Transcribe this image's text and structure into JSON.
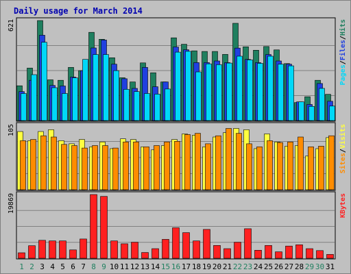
{
  "chart_data": {
    "type": "bar",
    "title": "Daily usage for March 2014",
    "categories": [
      "1",
      "2",
      "3",
      "4",
      "5",
      "6",
      "7",
      "8",
      "9",
      "10",
      "11",
      "12",
      "13",
      "14",
      "15",
      "16",
      "17",
      "18",
      "19",
      "20",
      "21",
      "22",
      "23",
      "24",
      "25",
      "26",
      "27",
      "28",
      "29",
      "30",
      "31"
    ],
    "weekend_days": [
      "1",
      "2",
      "8",
      "9",
      "15",
      "16",
      "22",
      "23",
      "29",
      "30"
    ],
    "panels": [
      {
        "id": "hits-files-pages",
        "ymax_label": "621",
        "ylim": [
          0,
          621
        ],
        "legend": [
          "Pages",
          "/",
          "Files",
          "/",
          "Hits"
        ],
        "series": [
          {
            "name": "Hits",
            "color": "#1f7f5f",
            "values": [
              216,
              326,
              621,
              253,
              250,
              330,
              310,
              548,
              505,
              390,
              266,
              240,
              358,
              297,
              240,
              514,
              474,
              433,
              429,
              429,
              411,
              604,
              458,
              437,
              460,
              439,
              354,
              112,
              148,
              250,
              163
            ]
          },
          {
            "name": "Files",
            "color": "#2040e0",
            "values": [
              180,
              250,
              530,
              218,
              215,
              270,
              310,
              451,
              500,
              350,
              260,
              200,
              330,
              210,
              240,
              457,
              440,
              360,
              360,
              370,
              360,
              450,
              380,
              360,
              410,
              370,
              350,
              116,
              100,
              230,
              120
            ]
          },
          {
            "name": "Pages",
            "color": "#00d8f8",
            "values": [
              168,
              285,
              486,
              204,
              168,
              265,
              380,
              410,
              410,
              310,
              194,
              180,
              168,
              164,
              196,
              425,
              430,
              302,
              352,
              347,
              357,
              400,
              377,
              355,
              400,
              350,
              340,
              116,
              88,
              200,
              90
            ]
          }
        ]
      },
      {
        "id": "visits-sites",
        "ymax_label": "105",
        "ylim": [
          0,
          105
        ],
        "legend": [
          "Sites",
          "/",
          "Visits"
        ],
        "series": [
          {
            "name": "Visits",
            "color": "#ffff40",
            "values": [
              95,
              80,
              95,
              98,
              80,
              75,
              82,
              70,
              78,
              67,
              83,
              82,
              70,
              65,
              72,
              82,
              91,
              89,
              70,
              86,
              93,
              100,
              98,
              67,
              91,
              78,
              71,
              72,
              55,
              67,
              85
            ]
          },
          {
            "name": "Sites",
            "color": "#ff8c00",
            "values": [
              80,
              82,
              88,
              86,
              74,
              72,
              68,
              72,
              72,
              68,
              78,
              78,
              70,
              72,
              78,
              79,
              90,
              92,
              75,
              88,
              100,
              92,
              75,
              70,
              80,
              77,
              78,
              86,
              70,
              71,
              88
            ]
          }
        ]
      },
      {
        "id": "kbytes",
        "ymax_label": "19869",
        "ylim": [
          0,
          19869
        ],
        "legend": [
          "KBytes"
        ],
        "series": [
          {
            "name": "KBytes",
            "color": "#ff2020",
            "values": [
              1700,
              3900,
              5600,
              5400,
              5400,
              2600,
              6000,
              19869,
              19300,
              5400,
              4500,
              5000,
              1800,
              3000,
              5900,
              9500,
              8000,
              5400,
              9000,
              4000,
              3000,
              5000,
              9200,
              2500,
              4000,
              2000,
              3800,
              4200,
              3000,
              2400,
              1200
            ]
          }
        ]
      }
    ]
  }
}
